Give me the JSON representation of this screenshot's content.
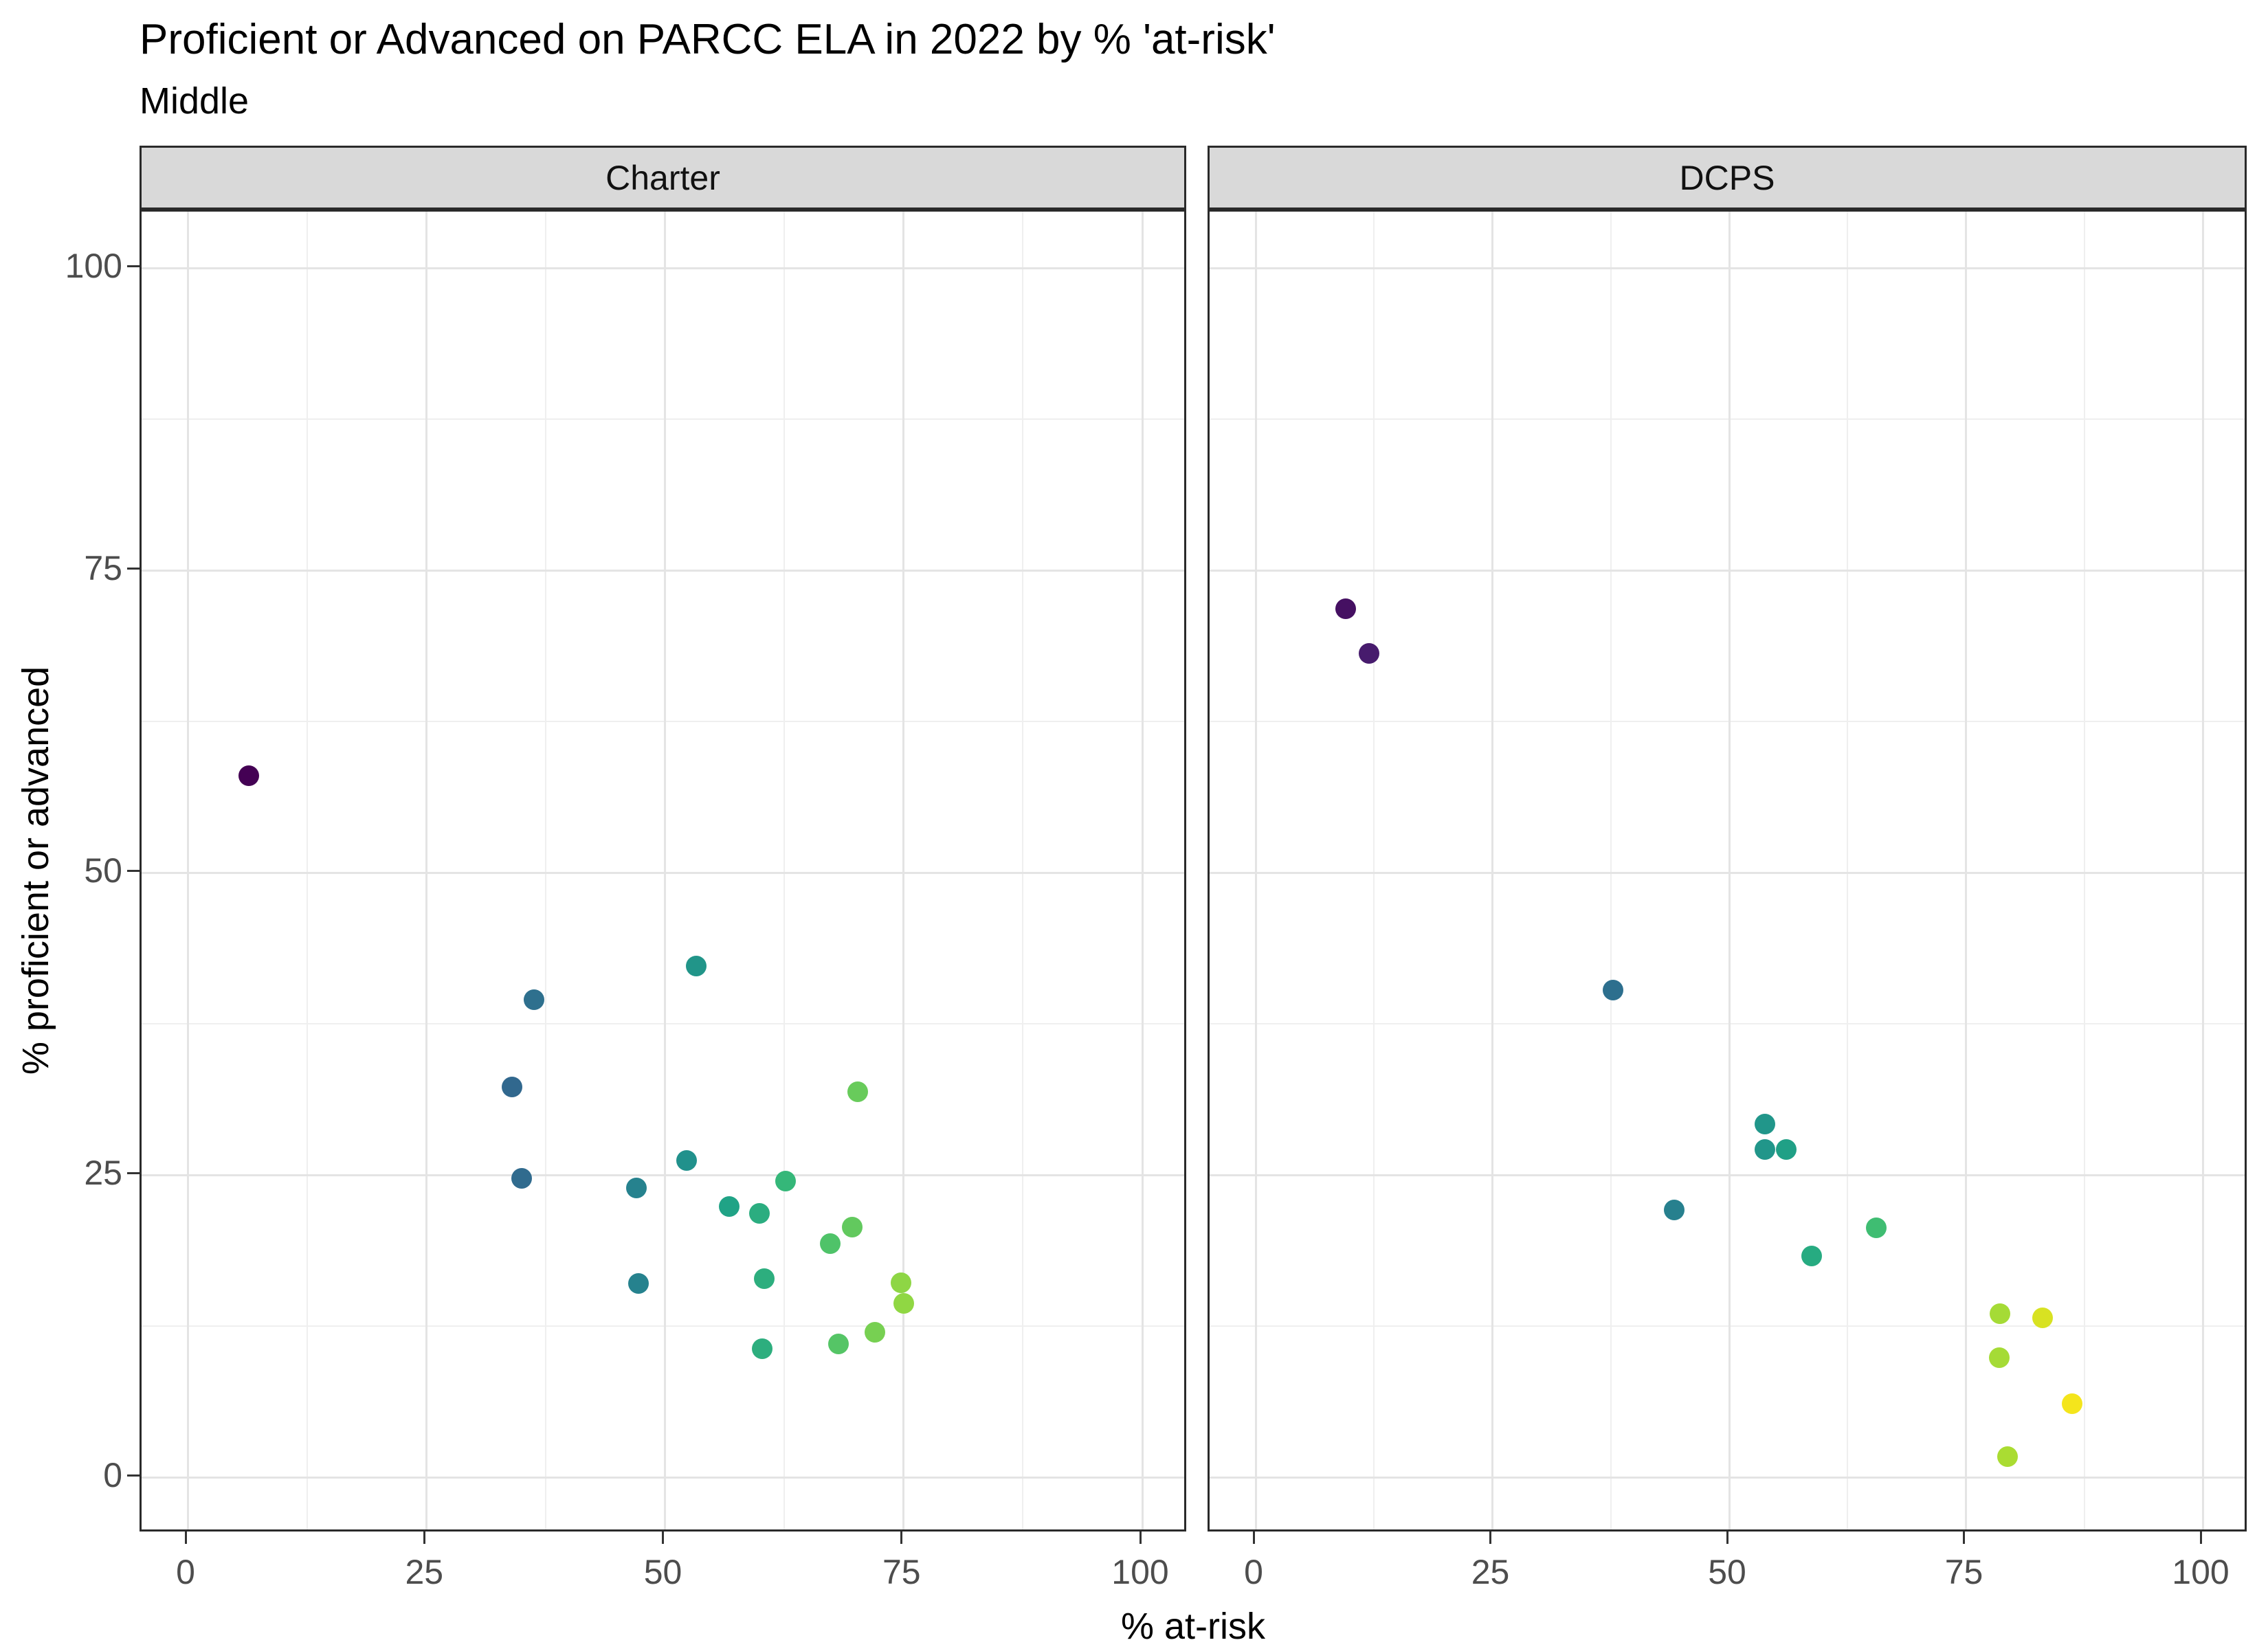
{
  "chart_data": {
    "type": "scatter",
    "title": "Proficient or Advanced on PARCC ELA in 2022 by % 'at-risk'",
    "subtitle": "Middle",
    "xlabel": "% at-risk",
    "ylabel": "% proficient or advanced",
    "legend": "none",
    "grid": true,
    "x_range": [
      0,
      100
    ],
    "y_range": [
      0,
      100
    ],
    "x_ticks": [
      0,
      25,
      50,
      75,
      100
    ],
    "y_ticks": [
      0,
      25,
      50,
      75,
      100
    ],
    "x_minor": [
      12.5,
      37.5,
      62.5,
      87.5
    ],
    "y_minor": [
      12.5,
      37.5,
      62.5,
      87.5
    ],
    "color_encoding": "viridis gradient mapped to % at-risk",
    "theme": {
      "strip_bg": "#d9d9d9",
      "panel_border": "#2a2a2a",
      "grid_major": "#e4e4e4",
      "grid_minor": "#efefef",
      "tick_color": "#333333",
      "tick_label_color": "#4d4d4d"
    },
    "facets": [
      {
        "label": "Charter",
        "points": [
          {
            "x": 6.4,
            "y": 58.0,
            "color": "#440154"
          },
          {
            "x": 34.0,
            "y": 32.3,
            "color": "#31688e"
          },
          {
            "x": 35.0,
            "y": 24.7,
            "color": "#306b8e"
          },
          {
            "x": 36.3,
            "y": 39.5,
            "color": "#2e708e"
          },
          {
            "x": 47.0,
            "y": 23.9,
            "color": "#26828e"
          },
          {
            "x": 47.2,
            "y": 16.0,
            "color": "#26828e"
          },
          {
            "x": 52.3,
            "y": 26.2,
            "color": "#21918c"
          },
          {
            "x": 53.3,
            "y": 42.3,
            "color": "#219589"
          },
          {
            "x": 56.7,
            "y": 22.4,
            "color": "#20a386"
          },
          {
            "x": 59.9,
            "y": 21.8,
            "color": "#2bad80"
          },
          {
            "x": 60.2,
            "y": 10.6,
            "color": "#2dae7e"
          },
          {
            "x": 60.4,
            "y": 16.4,
            "color": "#2dae7e"
          },
          {
            "x": 62.6,
            "y": 24.5,
            "color": "#35b779"
          },
          {
            "x": 67.3,
            "y": 19.3,
            "color": "#4fc369"
          },
          {
            "x": 68.2,
            "y": 11.0,
            "color": "#55c566"
          },
          {
            "x": 69.6,
            "y": 20.7,
            "color": "#62c95e"
          },
          {
            "x": 70.2,
            "y": 31.9,
            "color": "#68cb5b"
          },
          {
            "x": 72.0,
            "y": 12.0,
            "color": "#77d052"
          },
          {
            "x": 74.7,
            "y": 16.1,
            "color": "#8ed645"
          },
          {
            "x": 75.0,
            "y": 14.4,
            "color": "#90d743"
          }
        ]
      },
      {
        "label": "DCPS",
        "points": [
          {
            "x": 9.5,
            "y": 71.8,
            "color": "#451062"
          },
          {
            "x": 12.0,
            "y": 68.1,
            "color": "#471b6d"
          },
          {
            "x": 37.7,
            "y": 40.3,
            "color": "#2d6f8e"
          },
          {
            "x": 44.2,
            "y": 22.1,
            "color": "#27808e"
          },
          {
            "x": 53.8,
            "y": 29.2,
            "color": "#21968a"
          },
          {
            "x": 53.8,
            "y": 27.1,
            "color": "#21968a"
          },
          {
            "x": 56.0,
            "y": 27.1,
            "color": "#20a086"
          },
          {
            "x": 58.7,
            "y": 18.3,
            "color": "#27ab81"
          },
          {
            "x": 65.5,
            "y": 20.6,
            "color": "#3fbd72"
          },
          {
            "x": 78.5,
            "y": 9.9,
            "color": "#a5db36"
          },
          {
            "x": 78.6,
            "y": 13.5,
            "color": "#a5db36"
          },
          {
            "x": 79.4,
            "y": 1.7,
            "color": "#aadc32"
          },
          {
            "x": 83.1,
            "y": 13.2,
            "color": "#d8e222"
          },
          {
            "x": 86.2,
            "y": 6.1,
            "color": "#f4e51c"
          }
        ]
      }
    ]
  }
}
